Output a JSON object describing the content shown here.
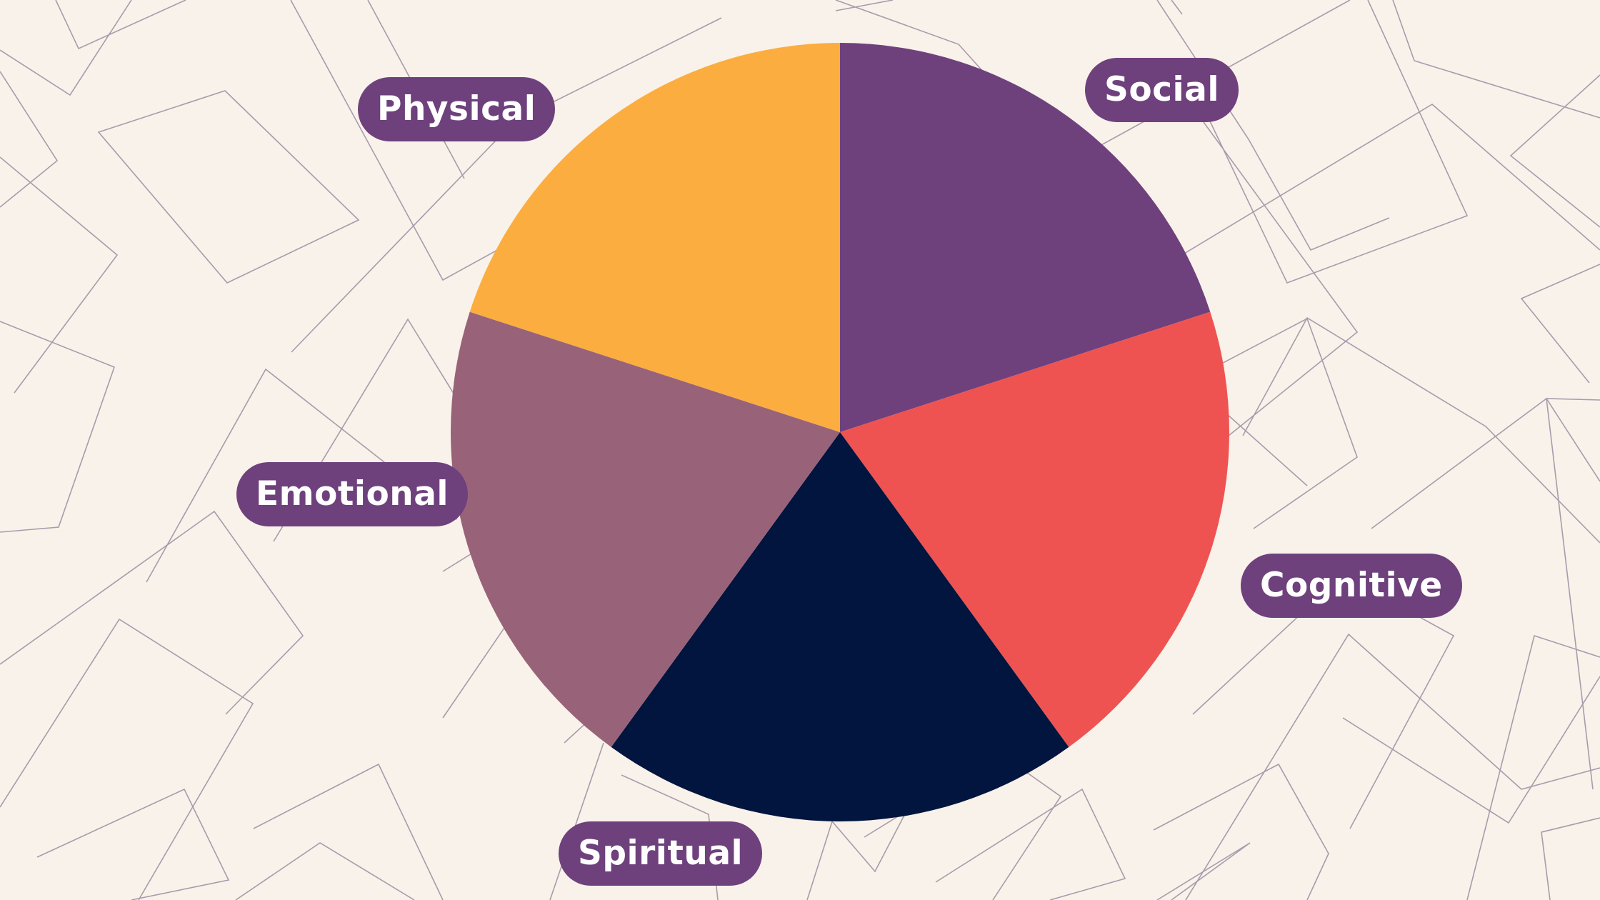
{
  "chart_data": {
    "type": "pie",
    "title": "",
    "start": "12 o'clock",
    "direction": "clockwise",
    "slices": [
      {
        "label": "Social",
        "value": 20,
        "color": "#6e417d"
      },
      {
        "label": "Cognitive",
        "value": 20,
        "color": "#ef5351"
      },
      {
        "label": "Spiritual",
        "value": 20,
        "color": "#01153e"
      },
      {
        "label": "Emotional",
        "value": 20,
        "color": "#986379"
      },
      {
        "label": "Physical",
        "value": 20,
        "color": "#fbad40"
      }
    ]
  },
  "theme": {
    "background": "#f9f2ea",
    "pattern_stroke": "#a99aac",
    "label_background": "#6e417d",
    "label_text": "#ffffff"
  }
}
